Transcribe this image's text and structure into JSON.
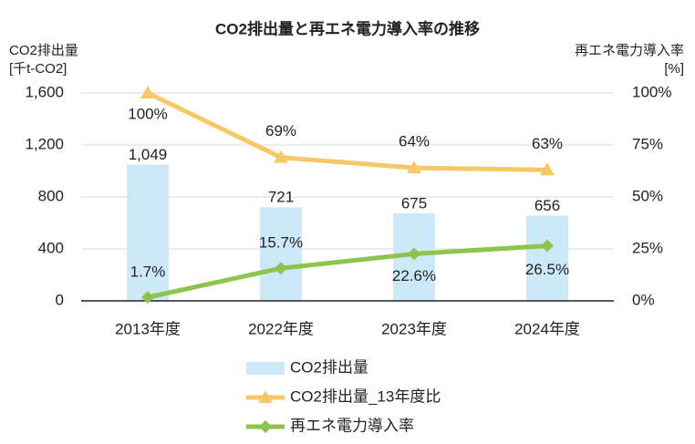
{
  "chart_data": {
    "type": "bar_line",
    "title": "CO2排出量と再エネ電力導入率の推移",
    "y_label": [
      "CO2排出量",
      "[千t-CO2]"
    ],
    "y2_label": [
      "再エネ電力導入率",
      "[%]"
    ],
    "categories": [
      "2013年度",
      "2022年度",
      "2023年度",
      "2024年度"
    ],
    "ylim": [
      0,
      1600
    ],
    "yticks": [
      0,
      400,
      800,
      {
        "value": 1200,
        "label": "1,200"
      },
      {
        "value": 1600,
        "label": "1,600"
      }
    ],
    "y2lim": [
      0,
      100
    ],
    "y2ticks": [
      {
        "value": 0,
        "label": "0%"
      },
      {
        "value": 25,
        "label": "25%"
      },
      {
        "value": 50,
        "label": "50%"
      },
      {
        "value": 75,
        "label": "75%"
      },
      {
        "value": 100,
        "label": "100%"
      }
    ],
    "series": [
      {
        "name": "CO2排出量",
        "type": "bar",
        "color": "#cde9f9",
        "values": [
          1049,
          721,
          675,
          656
        ],
        "value_labels": [
          "1,049",
          "721",
          "675",
          "656"
        ]
      },
      {
        "name": "CO2排出量_13年度比",
        "type": "line",
        "axis": "y2",
        "marker": "triangle",
        "color": "#f9c866",
        "values": [
          100,
          69,
          64,
          63
        ],
        "value_labels": [
          "100%",
          "69%",
          "64%",
          "63%"
        ]
      },
      {
        "name": "再エネ電力導入率",
        "type": "line",
        "axis": "y2",
        "marker": "diamond",
        "color": "#8dc44e",
        "values": [
          1.7,
          15.7,
          22.6,
          26.5
        ],
        "value_labels": [
          "1.7%",
          "15.7%",
          "22.6%",
          "26.5%"
        ]
      }
    ]
  }
}
